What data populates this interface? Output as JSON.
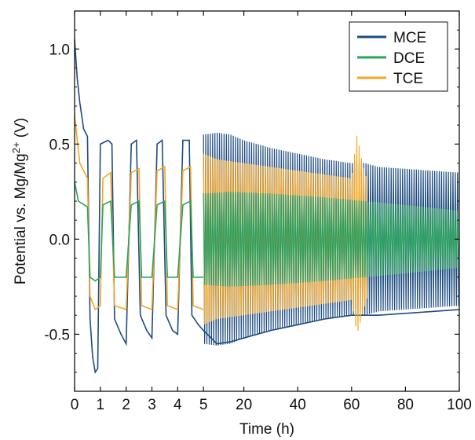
{
  "chart_data": {
    "type": "line",
    "xlabel": "Time (h)",
    "ylabel_parts": [
      "Potential vs. Mg/Mg",
      "2+",
      " (V)"
    ],
    "ylim": [
      -0.8,
      1.2
    ],
    "x_axis": {
      "scale": "piecewise-linear",
      "segments": [
        {
          "from": 0,
          "to": 5,
          "share": 0.335
        },
        {
          "from": 5,
          "to": 100,
          "share": 0.665
        }
      ],
      "ticks": [
        0,
        1,
        2,
        3,
        4,
        5,
        20,
        40,
        60,
        80,
        100
      ]
    },
    "y_ticks": [
      {
        "value": 1.0,
        "label": "1.0"
      },
      {
        "value": 0.5,
        "label": "0.5"
      },
      {
        "value": 0.0,
        "label": "0.0"
      },
      {
        "value": -0.5,
        "label": "-0.5"
      }
    ],
    "legend": {
      "position": "top-right"
    },
    "series": [
      {
        "name": "MCE",
        "color": "#1d4b80",
        "points": [
          [
            0,
            1.05
          ],
          [
            0.1,
            0.85
          ],
          [
            0.2,
            0.72
          ],
          [
            0.35,
            0.58
          ],
          [
            0.5,
            0.54
          ],
          [
            0.6,
            -0.42
          ],
          [
            0.7,
            -0.62
          ],
          [
            0.8,
            -0.7
          ],
          [
            0.9,
            -0.68
          ],
          [
            1.0,
            0.5
          ],
          [
            1.3,
            0.52
          ],
          [
            1.45,
            0.5
          ],
          [
            1.55,
            -0.42
          ],
          [
            1.8,
            -0.5
          ],
          [
            2.0,
            -0.55
          ],
          [
            2.2,
            0.5
          ],
          [
            2.4,
            0.52
          ],
          [
            2.55,
            -0.4
          ],
          [
            2.8,
            -0.48
          ],
          [
            3.0,
            -0.52
          ],
          [
            3.2,
            0.5
          ],
          [
            3.4,
            0.52
          ],
          [
            3.55,
            -0.4
          ],
          [
            3.8,
            -0.48
          ],
          [
            4.0,
            -0.5
          ],
          [
            4.2,
            0.52
          ],
          [
            4.45,
            0.52
          ],
          [
            4.55,
            -0.4
          ],
          [
            4.8,
            -0.45
          ],
          [
            5.0,
            -0.48
          ],
          [
            10,
            -0.55
          ],
          [
            15,
            -0.54
          ],
          [
            20,
            -0.52
          ],
          [
            30,
            -0.48
          ],
          [
            40,
            -0.45
          ],
          [
            50,
            -0.42
          ],
          [
            60,
            -0.4
          ],
          [
            70,
            -0.4
          ],
          [
            80,
            -0.39
          ],
          [
            90,
            -0.38
          ],
          [
            100,
            -0.37
          ]
        ],
        "envelope_upper": [
          [
            5,
            0.55
          ],
          [
            10,
            0.56
          ],
          [
            15,
            0.55
          ],
          [
            20,
            0.52
          ],
          [
            30,
            0.48
          ],
          [
            40,
            0.45
          ],
          [
            50,
            0.42
          ],
          [
            60,
            0.4
          ],
          [
            65,
            0.4
          ],
          [
            70,
            0.38
          ],
          [
            80,
            0.37
          ],
          [
            90,
            0.36
          ],
          [
            100,
            0.35
          ]
        ],
        "envelope_lower": [
          [
            5,
            -0.55
          ],
          [
            10,
            -0.56
          ],
          [
            15,
            -0.55
          ],
          [
            20,
            -0.52
          ],
          [
            30,
            -0.48
          ],
          [
            40,
            -0.45
          ],
          [
            50,
            -0.42
          ],
          [
            60,
            -0.4
          ],
          [
            65,
            -0.4
          ],
          [
            70,
            -0.38
          ],
          [
            80,
            -0.37
          ],
          [
            90,
            -0.36
          ],
          [
            100,
            -0.35
          ]
        ]
      },
      {
        "name": "DCE",
        "color": "#2ca25f",
        "points": [
          [
            0,
            0.3
          ],
          [
            0.15,
            0.2
          ],
          [
            0.5,
            0.17
          ],
          [
            0.6,
            -0.2
          ],
          [
            0.8,
            -0.22
          ],
          [
            1.0,
            -0.2
          ],
          [
            1.1,
            0.18
          ],
          [
            1.4,
            0.2
          ],
          [
            1.55,
            -0.2
          ],
          [
            2.0,
            -0.2
          ],
          [
            2.2,
            0.18
          ],
          [
            2.5,
            0.2
          ],
          [
            2.6,
            -0.2
          ],
          [
            3.0,
            -0.2
          ],
          [
            3.2,
            0.18
          ],
          [
            3.5,
            0.2
          ],
          [
            3.6,
            -0.2
          ],
          [
            4.0,
            -0.2
          ],
          [
            4.2,
            0.18
          ],
          [
            4.5,
            0.2
          ],
          [
            4.6,
            -0.2
          ],
          [
            5.0,
            -0.2
          ]
        ],
        "envelope_upper": [
          [
            5,
            0.24
          ],
          [
            15,
            0.25
          ],
          [
            30,
            0.24
          ],
          [
            50,
            0.22
          ],
          [
            65,
            0.2
          ],
          [
            80,
            0.18
          ],
          [
            100,
            0.15
          ]
        ],
        "envelope_lower": [
          [
            5,
            -0.24
          ],
          [
            15,
            -0.25
          ],
          [
            30,
            -0.24
          ],
          [
            50,
            -0.22
          ],
          [
            65,
            -0.2
          ],
          [
            80,
            -0.18
          ],
          [
            100,
            -0.15
          ]
        ]
      },
      {
        "name": "TCE",
        "color": "#f5a623",
        "points": [
          [
            0,
            0.65
          ],
          [
            0.2,
            0.4
          ],
          [
            0.5,
            0.32
          ],
          [
            0.6,
            -0.3
          ],
          [
            0.8,
            -0.37
          ],
          [
            1.0,
            -0.35
          ],
          [
            1.1,
            0.32
          ],
          [
            1.4,
            0.35
          ],
          [
            1.55,
            -0.35
          ],
          [
            2.0,
            -0.37
          ],
          [
            2.2,
            0.35
          ],
          [
            2.5,
            0.37
          ],
          [
            2.6,
            -0.35
          ],
          [
            3.0,
            -0.37
          ],
          [
            3.2,
            0.36
          ],
          [
            3.5,
            0.38
          ],
          [
            3.6,
            -0.35
          ],
          [
            4.0,
            -0.37
          ],
          [
            4.2,
            0.36
          ],
          [
            4.5,
            0.38
          ],
          [
            4.6,
            -0.35
          ],
          [
            5.0,
            -0.37
          ]
        ],
        "envelope_upper": [
          [
            5,
            0.45
          ],
          [
            10,
            0.42
          ],
          [
            20,
            0.4
          ],
          [
            30,
            0.38
          ],
          [
            40,
            0.36
          ],
          [
            50,
            0.34
          ],
          [
            60,
            0.32
          ],
          [
            62,
            0.55
          ],
          [
            64,
            0.4
          ],
          [
            66,
            0.3
          ]
        ],
        "envelope_lower": [
          [
            5,
            -0.45
          ],
          [
            10,
            -0.42
          ],
          [
            20,
            -0.4
          ],
          [
            30,
            -0.38
          ],
          [
            40,
            -0.36
          ],
          [
            50,
            -0.34
          ],
          [
            60,
            -0.32
          ],
          [
            62,
            -0.5
          ],
          [
            64,
            -0.4
          ],
          [
            66,
            -0.3
          ]
        ]
      }
    ]
  }
}
